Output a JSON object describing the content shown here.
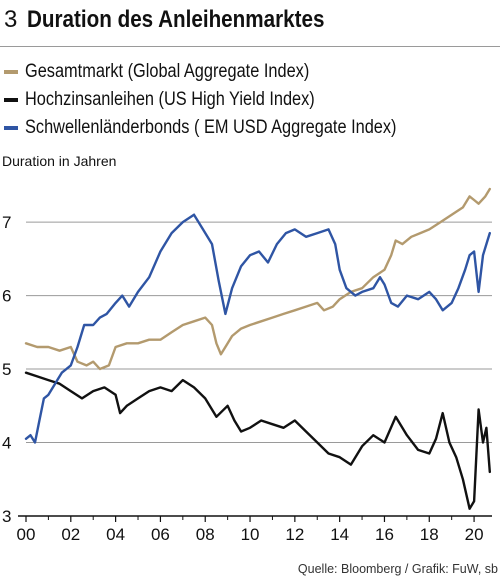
{
  "header": {
    "number": "3",
    "title": "Duration des Anleihenmarktes"
  },
  "legend": [
    {
      "label": "Gesamtmarkt (Global Aggregate Index)",
      "color": "#b39a6e"
    },
    {
      "label": "Hochzinsanleihen (US High Yield Index)",
      "color": "#111111"
    },
    {
      "label": "Schwellenländerbonds ( EM USD Aggregate Index)",
      "color": "#2f55a4"
    }
  ],
  "source": "Quelle: Bloomberg / Grafik: FuW, sb",
  "chart_data": {
    "type": "line",
    "ylabel": "Duration in Jahren",
    "xlabel": "",
    "xlim": [
      2000,
      2020.8
    ],
    "ylim": [
      3,
      7.6
    ],
    "yticks": [
      3,
      4,
      5,
      6,
      7
    ],
    "xticks": [
      {
        "value": 2000,
        "label": "00"
      },
      {
        "value": 2002,
        "label": "02"
      },
      {
        "value": 2004,
        "label": "04"
      },
      {
        "value": 2006,
        "label": "06"
      },
      {
        "value": 2008,
        "label": "08"
      },
      {
        "value": 2010,
        "label": "10"
      },
      {
        "value": 2012,
        "label": "12"
      },
      {
        "value": 2014,
        "label": "14"
      },
      {
        "value": 2016,
        "label": "16"
      },
      {
        "value": 2018,
        "label": "18"
      },
      {
        "value": 2020,
        "label": "20"
      }
    ],
    "grid": "horizontal",
    "series": [
      {
        "name": "Gesamtmarkt (Global Aggregate Index)",
        "color": "#b39a6e",
        "points": [
          [
            2000.0,
            5.35
          ],
          [
            2000.5,
            5.3
          ],
          [
            2001.0,
            5.3
          ],
          [
            2001.5,
            5.25
          ],
          [
            2002.0,
            5.3
          ],
          [
            2002.3,
            5.1
          ],
          [
            2002.7,
            5.05
          ],
          [
            2003.0,
            5.1
          ],
          [
            2003.3,
            5.0
          ],
          [
            2003.7,
            5.05
          ],
          [
            2004.0,
            5.3
          ],
          [
            2004.5,
            5.35
          ],
          [
            2005.0,
            5.35
          ],
          [
            2005.5,
            5.4
          ],
          [
            2006.0,
            5.4
          ],
          [
            2006.5,
            5.5
          ],
          [
            2007.0,
            5.6
          ],
          [
            2007.5,
            5.65
          ],
          [
            2008.0,
            5.7
          ],
          [
            2008.3,
            5.6
          ],
          [
            2008.5,
            5.35
          ],
          [
            2008.7,
            5.2
          ],
          [
            2008.9,
            5.3
          ],
          [
            2009.2,
            5.45
          ],
          [
            2009.6,
            5.55
          ],
          [
            2010.0,
            5.6
          ],
          [
            2010.5,
            5.65
          ],
          [
            2011.0,
            5.7
          ],
          [
            2011.5,
            5.75
          ],
          [
            2012.0,
            5.8
          ],
          [
            2012.5,
            5.85
          ],
          [
            2013.0,
            5.9
          ],
          [
            2013.3,
            5.8
          ],
          [
            2013.7,
            5.85
          ],
          [
            2014.0,
            5.95
          ],
          [
            2014.5,
            6.05
          ],
          [
            2015.0,
            6.1
          ],
          [
            2015.5,
            6.25
          ],
          [
            2016.0,
            6.35
          ],
          [
            2016.3,
            6.55
          ],
          [
            2016.5,
            6.75
          ],
          [
            2016.8,
            6.7
          ],
          [
            2017.2,
            6.8
          ],
          [
            2017.6,
            6.85
          ],
          [
            2018.0,
            6.9
          ],
          [
            2018.5,
            7.0
          ],
          [
            2019.0,
            7.1
          ],
          [
            2019.5,
            7.2
          ],
          [
            2019.8,
            7.35
          ],
          [
            2020.0,
            7.3
          ],
          [
            2020.2,
            7.25
          ],
          [
            2020.5,
            7.35
          ],
          [
            2020.7,
            7.45
          ]
        ]
      },
      {
        "name": "Hochzinsanleihen (US High Yield Index)",
        "color": "#111111",
        "points": [
          [
            2000.0,
            4.95
          ],
          [
            2000.5,
            4.9
          ],
          [
            2001.0,
            4.85
          ],
          [
            2001.5,
            4.8
          ],
          [
            2002.0,
            4.7
          ],
          [
            2002.5,
            4.6
          ],
          [
            2003.0,
            4.7
          ],
          [
            2003.5,
            4.75
          ],
          [
            2004.0,
            4.65
          ],
          [
            2004.2,
            4.4
          ],
          [
            2004.5,
            4.5
          ],
          [
            2005.0,
            4.6
          ],
          [
            2005.5,
            4.7
          ],
          [
            2006.0,
            4.75
          ],
          [
            2006.5,
            4.7
          ],
          [
            2007.0,
            4.85
          ],
          [
            2007.5,
            4.75
          ],
          [
            2008.0,
            4.6
          ],
          [
            2008.5,
            4.35
          ],
          [
            2009.0,
            4.5
          ],
          [
            2009.3,
            4.3
          ],
          [
            2009.6,
            4.15
          ],
          [
            2010.0,
            4.2
          ],
          [
            2010.5,
            4.3
          ],
          [
            2011.0,
            4.25
          ],
          [
            2011.5,
            4.2
          ],
          [
            2012.0,
            4.3
          ],
          [
            2012.5,
            4.15
          ],
          [
            2013.0,
            4.0
          ],
          [
            2013.5,
            3.85
          ],
          [
            2014.0,
            3.8
          ],
          [
            2014.5,
            3.7
          ],
          [
            2015.0,
            3.95
          ],
          [
            2015.5,
            4.1
          ],
          [
            2016.0,
            4.0
          ],
          [
            2016.5,
            4.35
          ],
          [
            2017.0,
            4.1
          ],
          [
            2017.5,
            3.9
          ],
          [
            2018.0,
            3.85
          ],
          [
            2018.3,
            4.05
          ],
          [
            2018.6,
            4.4
          ],
          [
            2018.9,
            4.0
          ],
          [
            2019.2,
            3.8
          ],
          [
            2019.5,
            3.5
          ],
          [
            2019.8,
            3.1
          ],
          [
            2020.0,
            3.2
          ],
          [
            2020.2,
            4.45
          ],
          [
            2020.4,
            4.0
          ],
          [
            2020.55,
            4.2
          ],
          [
            2020.7,
            3.6
          ]
        ]
      },
      {
        "name": "Schwellenländerbonds ( EM USD Aggregate Index)",
        "color": "#2f55a4",
        "points": [
          [
            2000.0,
            4.05
          ],
          [
            2000.2,
            4.1
          ],
          [
            2000.4,
            4.0
          ],
          [
            2000.6,
            4.3
          ],
          [
            2000.8,
            4.6
          ],
          [
            2001.0,
            4.65
          ],
          [
            2001.3,
            4.8
          ],
          [
            2001.6,
            4.95
          ],
          [
            2002.0,
            5.05
          ],
          [
            2002.3,
            5.3
          ],
          [
            2002.6,
            5.6
          ],
          [
            2003.0,
            5.6
          ],
          [
            2003.3,
            5.7
          ],
          [
            2003.6,
            5.75
          ],
          [
            2004.0,
            5.9
          ],
          [
            2004.3,
            6.0
          ],
          [
            2004.6,
            5.85
          ],
          [
            2005.0,
            6.05
          ],
          [
            2005.5,
            6.25
          ],
          [
            2006.0,
            6.6
          ],
          [
            2006.5,
            6.85
          ],
          [
            2007.0,
            7.0
          ],
          [
            2007.5,
            7.1
          ],
          [
            2007.9,
            6.9
          ],
          [
            2008.3,
            6.7
          ],
          [
            2008.6,
            6.2
          ],
          [
            2008.9,
            5.75
          ],
          [
            2009.2,
            6.1
          ],
          [
            2009.6,
            6.4
          ],
          [
            2010.0,
            6.55
          ],
          [
            2010.4,
            6.6
          ],
          [
            2010.8,
            6.45
          ],
          [
            2011.2,
            6.7
          ],
          [
            2011.6,
            6.85
          ],
          [
            2012.0,
            6.9
          ],
          [
            2012.5,
            6.8
          ],
          [
            2013.0,
            6.85
          ],
          [
            2013.5,
            6.9
          ],
          [
            2013.8,
            6.7
          ],
          [
            2014.0,
            6.35
          ],
          [
            2014.3,
            6.1
          ],
          [
            2014.7,
            6.0
          ],
          [
            2015.0,
            6.05
          ],
          [
            2015.5,
            6.1
          ],
          [
            2015.8,
            6.25
          ],
          [
            2016.0,
            6.15
          ],
          [
            2016.3,
            5.9
          ],
          [
            2016.6,
            5.85
          ],
          [
            2017.0,
            6.0
          ],
          [
            2017.5,
            5.95
          ],
          [
            2018.0,
            6.05
          ],
          [
            2018.3,
            5.95
          ],
          [
            2018.6,
            5.8
          ],
          [
            2019.0,
            5.9
          ],
          [
            2019.3,
            6.1
          ],
          [
            2019.6,
            6.35
          ],
          [
            2019.8,
            6.55
          ],
          [
            2020.0,
            6.6
          ],
          [
            2020.2,
            6.05
          ],
          [
            2020.4,
            6.55
          ],
          [
            2020.6,
            6.75
          ],
          [
            2020.7,
            6.85
          ]
        ]
      }
    ]
  }
}
